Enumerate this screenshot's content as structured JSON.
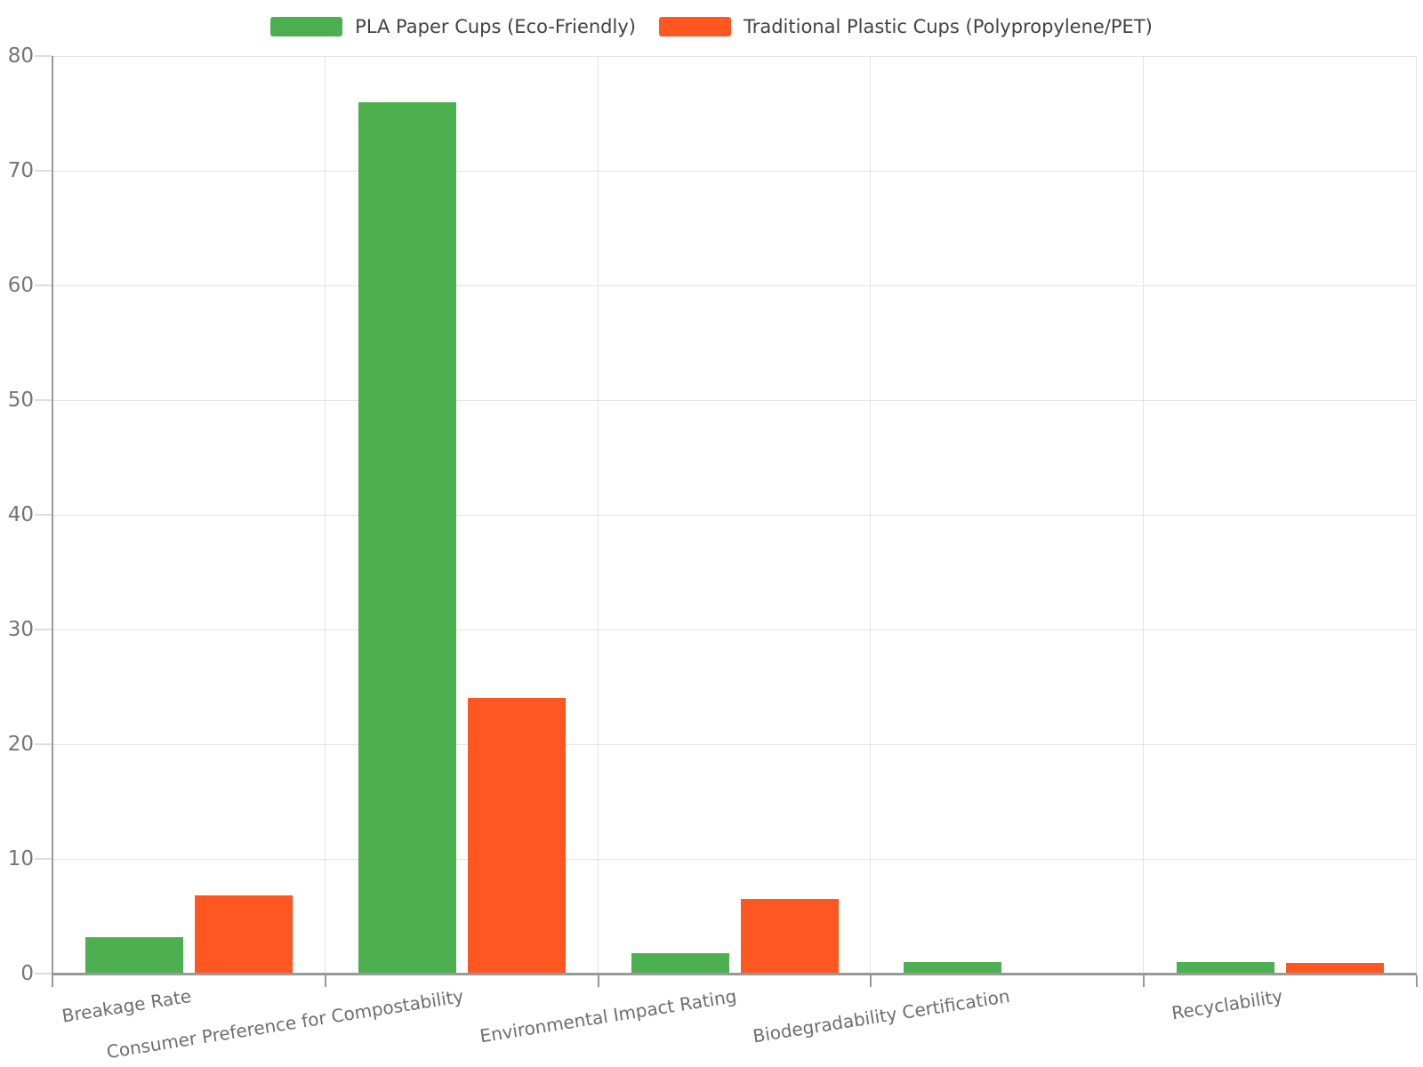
{
  "chart_data": {
    "type": "bar",
    "categories": [
      "Breakage Rate",
      "Consumer Preference for Compostability",
      "Environmental Impact Rating",
      "Biodegradability Certification",
      "Recyclability"
    ],
    "series": [
      {
        "name": "PLA Paper Cups (Eco-Friendly)",
        "color": "#4CAF50",
        "values": [
          3.2,
          76,
          1.8,
          1,
          1
        ]
      },
      {
        "name": "Traditional Plastic Cups (Polypropylene/PET)",
        "color": "#FF5722",
        "values": [
          6.8,
          24,
          6.5,
          0,
          0.9
        ]
      }
    ],
    "xlabel": "",
    "ylabel": "",
    "ylim": [
      0,
      80
    ],
    "yticks": [
      0,
      10,
      20,
      30,
      40,
      50,
      60,
      70,
      80
    ],
    "grid": true,
    "legend_position": "top"
  },
  "styles": {
    "background": "#ffffff",
    "grid-color": "#e3e3e3",
    "axis-color": "#999999",
    "tick-color": "#dddddd",
    "ylabel-color": "#757575",
    "xlabel-color": "#6e6e6e",
    "legend-text-color": "#424242"
  }
}
